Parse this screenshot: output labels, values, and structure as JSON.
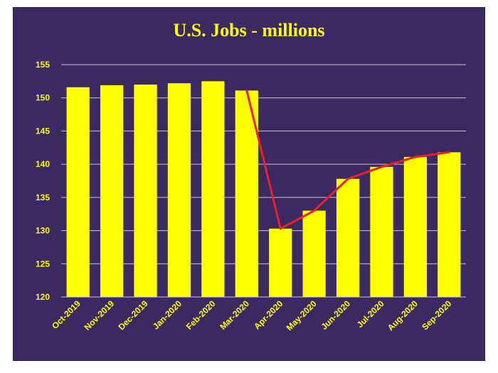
{
  "chart_data": {
    "type": "bar",
    "title": "U.S. Jobs - millions",
    "categories": [
      "Oct-2019",
      "Nov-2019",
      "Dec-2019",
      "Jan-2020",
      "Feb-2020",
      "Mar-2020",
      "Apr-2020",
      "May-2020",
      "Jun-2020",
      "Jul-2020",
      "Aug-2020",
      "Sep-2020"
    ],
    "values": [
      151.6,
      151.9,
      152.0,
      152.2,
      152.5,
      151.1,
      130.3,
      133.0,
      137.8,
      139.6,
      141.1,
      141.8
    ],
    "trend_line": {
      "type": "line",
      "categories": [
        "Mar-2020",
        "Apr-2020",
        "May-2020",
        "Jun-2020",
        "Jul-2020",
        "Aug-2020",
        "Sep-2020"
      ],
      "values": [
        151.1,
        130.3,
        133.0,
        137.8,
        139.6,
        141.1,
        141.8
      ],
      "color": "#e8202a"
    },
    "ylim": [
      120,
      155
    ],
    "yticks": [
      120,
      125,
      130,
      135,
      140,
      145,
      150,
      155
    ],
    "grid": true,
    "legend": "none",
    "colors": {
      "background": "#3b2a62",
      "bar": "#ffff00",
      "text": "#ffff00",
      "gridline": "#c9c3d8",
      "line": "#e8202a"
    }
  }
}
